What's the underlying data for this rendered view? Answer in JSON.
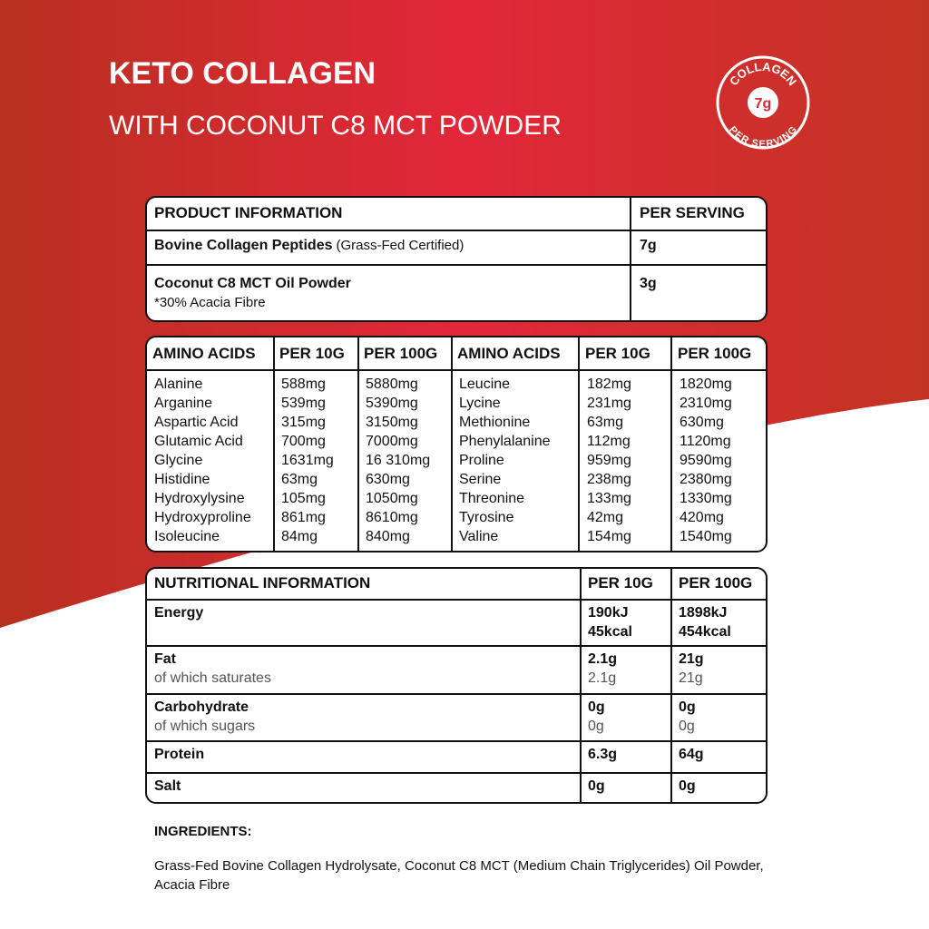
{
  "header": {
    "title": "KETO COLLAGEN",
    "subtitle": "WITH COCONUT C8 MCT POWDER"
  },
  "badge": {
    "top": "COLLAGEN",
    "amount": "7g",
    "bottom": "PER SERVING"
  },
  "product_table": {
    "headers": [
      "PRODUCT INFORMATION",
      "PER SERVING"
    ],
    "rows": [
      {
        "name": "Bovine Collagen Peptides",
        "note": "(Grass-Fed Certified)",
        "amount": "7g"
      },
      {
        "name": "Coconut C8 MCT Oil Powder",
        "note": "*30% Acacia Fibre",
        "amount": "3g"
      }
    ]
  },
  "amino_table": {
    "headers": [
      "AMINO ACIDS",
      "PER 10G",
      "PER 100G",
      "AMINO ACIDS",
      "PER 10G",
      "PER 100G"
    ],
    "left": [
      [
        "Alanine",
        "588mg",
        "5880mg"
      ],
      [
        "Arganine",
        "539mg",
        "5390mg"
      ],
      [
        "Aspartic Acid",
        "315mg",
        "3150mg"
      ],
      [
        "Glutamic Acid",
        "700mg",
        "7000mg"
      ],
      [
        "Glycine",
        "1631mg",
        "16 310mg"
      ],
      [
        "Histidine",
        "63mg",
        "630mg"
      ],
      [
        "Hydroxylysine",
        "105mg",
        "1050mg"
      ],
      [
        "Hydroxyproline",
        "861mg",
        "8610mg"
      ],
      [
        "Isoleucine",
        "84mg",
        "840mg"
      ]
    ],
    "right": [
      [
        "Leucine",
        "182mg",
        "1820mg"
      ],
      [
        "Lycine",
        "231mg",
        "2310mg"
      ],
      [
        "Methionine",
        "63mg",
        "630mg"
      ],
      [
        "Phenylalanine",
        "112mg",
        "1120mg"
      ],
      [
        "Proline",
        "959mg",
        "9590mg"
      ],
      [
        "Serine",
        "238mg",
        "2380mg"
      ],
      [
        "Threonine",
        "133mg",
        "1330mg"
      ],
      [
        "Tyrosine",
        "42mg",
        "420mg"
      ],
      [
        "Valine",
        "154mg",
        "1540mg"
      ]
    ]
  },
  "nutrition_table": {
    "headers": [
      "NUTRITIONAL INFORMATION",
      "PER 10G",
      "PER 100G"
    ],
    "rows": [
      {
        "label": "Energy",
        "per_10g": [
          "190kJ",
          "45kcal"
        ],
        "per_100g": [
          "1898kJ",
          "454kcal"
        ]
      },
      {
        "label": "Fat",
        "sub_label": "of which saturates",
        "per_10g": "2.1g",
        "sub_per_10g": "2.1g",
        "per_100g": "21g",
        "sub_per_100g": "21g"
      },
      {
        "label": "Carbohydrate",
        "sub_label": "of which sugars",
        "per_10g": "0g",
        "sub_per_10g": "0g",
        "per_100g": "0g",
        "sub_per_100g": "0g"
      },
      {
        "label": "Protein",
        "per_10g": "6.3g",
        "per_100g": "64g"
      },
      {
        "label": "Salt",
        "per_10g": "0g",
        "per_100g": "0g"
      }
    ]
  },
  "ingredients": {
    "title": "INGREDIENTS:",
    "text": "Grass-Fed Bovine Collagen Hydrolysate, Coconut C8 MCT (Medium Chain Triglycerides) Oil Powder, Acacia Fibre"
  }
}
